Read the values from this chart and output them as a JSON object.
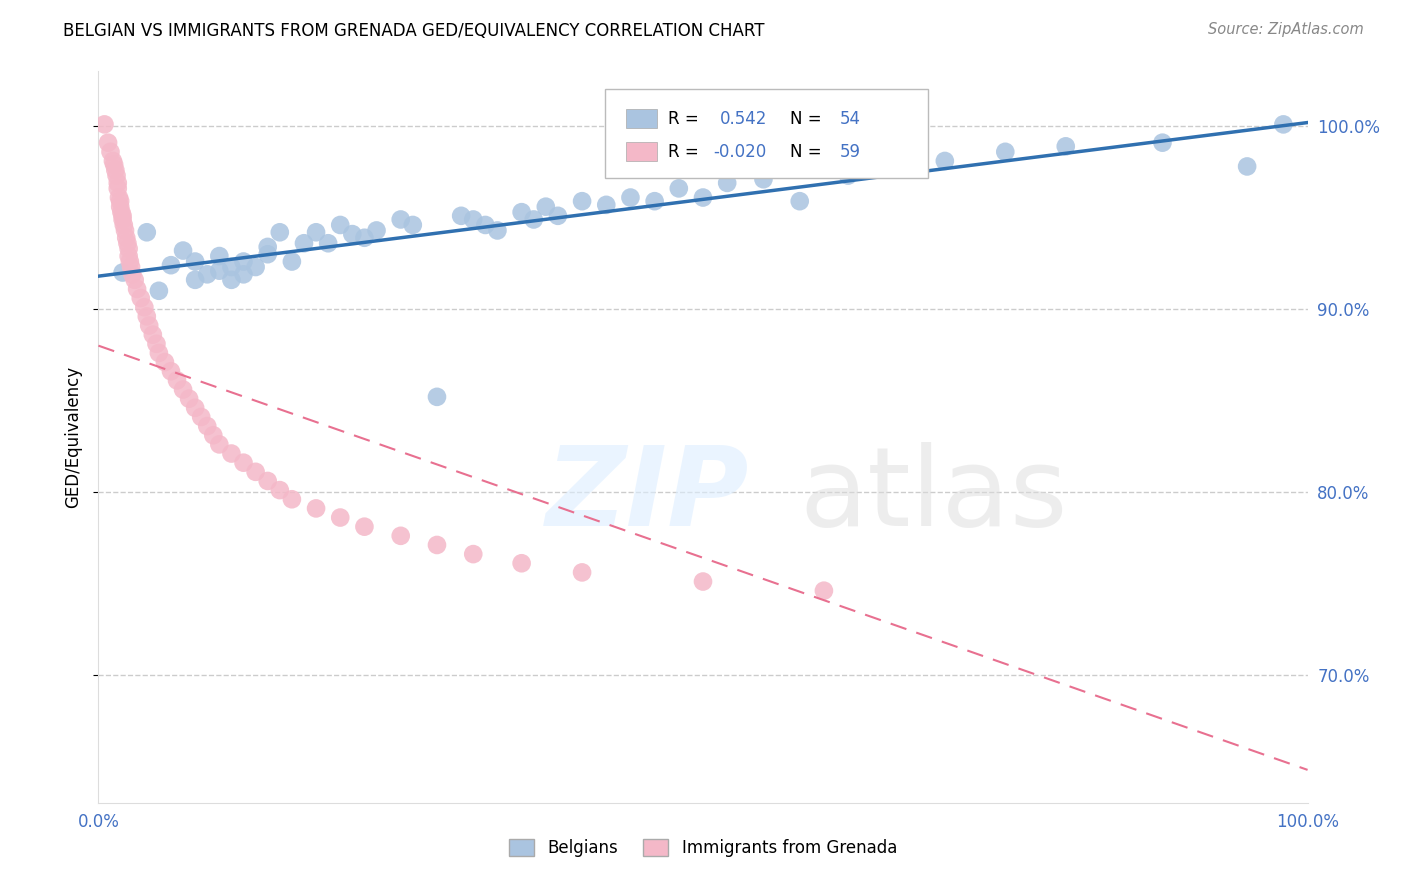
{
  "title": "BELGIAN VS IMMIGRANTS FROM GRENADA GED/EQUIVALENCY CORRELATION CHART",
  "source": "Source: ZipAtlas.com",
  "ylabel": "GED/Equivalency",
  "xlim": [
    0.0,
    1.0
  ],
  "ylim": [
    0.63,
    1.03
  ],
  "yticks": [
    0.7,
    0.8,
    0.9,
    1.0
  ],
  "ytick_labels": [
    "70.0%",
    "80.0%",
    "90.0%",
    "100.0%"
  ],
  "blue_R": 0.542,
  "blue_N": 54,
  "pink_R": -0.02,
  "pink_N": 59,
  "blue_color": "#aac4e0",
  "pink_color": "#f4b8c8",
  "blue_line_color": "#3070b0",
  "pink_line_color": "#e87090",
  "legend_label_blue": "Belgians",
  "legend_label_pink": "Immigrants from Grenada",
  "blue_line_y0": 0.918,
  "blue_line_y1": 1.002,
  "pink_line_y0": 0.88,
  "pink_line_y1": 0.648,
  "blue_x": [
    0.02,
    0.04,
    0.05,
    0.06,
    0.07,
    0.08,
    0.08,
    0.09,
    0.1,
    0.1,
    0.11,
    0.11,
    0.12,
    0.12,
    0.13,
    0.14,
    0.14,
    0.15,
    0.16,
    0.17,
    0.18,
    0.19,
    0.2,
    0.21,
    0.22,
    0.23,
    0.25,
    0.26,
    0.28,
    0.3,
    0.31,
    0.32,
    0.33,
    0.35,
    0.36,
    0.37,
    0.38,
    0.4,
    0.42,
    0.44,
    0.46,
    0.48,
    0.5,
    0.52,
    0.55,
    0.58,
    0.62,
    0.65,
    0.7,
    0.75,
    0.8,
    0.88,
    0.95,
    0.98
  ],
  "blue_y": [
    0.92,
    0.942,
    0.91,
    0.924,
    0.932,
    0.916,
    0.926,
    0.919,
    0.921,
    0.929,
    0.916,
    0.923,
    0.919,
    0.926,
    0.923,
    0.93,
    0.934,
    0.942,
    0.926,
    0.936,
    0.942,
    0.936,
    0.946,
    0.941,
    0.939,
    0.943,
    0.949,
    0.946,
    0.852,
    0.951,
    0.949,
    0.946,
    0.943,
    0.953,
    0.949,
    0.956,
    0.951,
    0.959,
    0.957,
    0.961,
    0.959,
    0.966,
    0.961,
    0.969,
    0.971,
    0.959,
    0.973,
    0.979,
    0.981,
    0.986,
    0.989,
    0.991,
    0.978,
    1.001
  ],
  "pink_x": [
    0.005,
    0.008,
    0.01,
    0.012,
    0.013,
    0.014,
    0.015,
    0.016,
    0.016,
    0.017,
    0.018,
    0.018,
    0.019,
    0.02,
    0.02,
    0.021,
    0.022,
    0.023,
    0.024,
    0.025,
    0.025,
    0.026,
    0.027,
    0.028,
    0.03,
    0.032,
    0.035,
    0.038,
    0.04,
    0.042,
    0.045,
    0.048,
    0.05,
    0.055,
    0.06,
    0.065,
    0.07,
    0.075,
    0.08,
    0.085,
    0.09,
    0.095,
    0.1,
    0.11,
    0.12,
    0.13,
    0.14,
    0.15,
    0.16,
    0.18,
    0.2,
    0.22,
    0.25,
    0.28,
    0.31,
    0.35,
    0.4,
    0.5,
    0.6
  ],
  "pink_y": [
    1.001,
    0.991,
    0.986,
    0.981,
    0.979,
    0.976,
    0.973,
    0.969,
    0.966,
    0.961,
    0.959,
    0.956,
    0.953,
    0.951,
    0.949,
    0.946,
    0.943,
    0.939,
    0.936,
    0.933,
    0.929,
    0.926,
    0.923,
    0.919,
    0.916,
    0.911,
    0.906,
    0.901,
    0.896,
    0.891,
    0.886,
    0.881,
    0.876,
    0.871,
    0.866,
    0.861,
    0.856,
    0.851,
    0.846,
    0.841,
    0.836,
    0.831,
    0.826,
    0.821,
    0.816,
    0.811,
    0.806,
    0.801,
    0.796,
    0.791,
    0.786,
    0.781,
    0.776,
    0.771,
    0.766,
    0.761,
    0.756,
    0.751,
    0.746
  ]
}
